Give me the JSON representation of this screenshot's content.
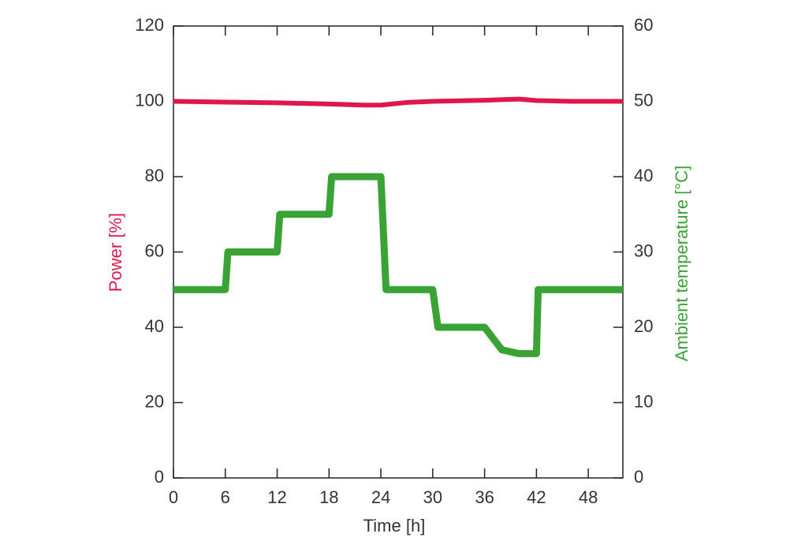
{
  "chart_data": {
    "type": "line",
    "x_label": "Time [h]",
    "y_label": "Power [%]",
    "y2_label": "Ambient temperature [°C]",
    "xlim": [
      0,
      52
    ],
    "xticks": [
      0,
      6,
      12,
      18,
      24,
      30,
      36,
      42,
      48
    ],
    "ylim": [
      0,
      120
    ],
    "yticks": [
      0,
      20,
      40,
      60,
      80,
      100,
      120
    ],
    "y2lim": [
      0,
      60
    ],
    "y2ticks": [
      0,
      10,
      20,
      30,
      40,
      50,
      60
    ],
    "series": [
      {
        "name": "Power [%]",
        "color": "#e0174a",
        "x": [
          0,
          6,
          12,
          18,
          22,
          24,
          27,
          30,
          36,
          40,
          42,
          46,
          52
        ],
        "values": [
          100,
          99.8,
          99.6,
          99.3,
          99,
          99,
          99.7,
          100,
          100.3,
          100.6,
          100.2,
          100,
          100
        ]
      },
      {
        "name": "Ambient temperature [°C]",
        "color": "#3aa335",
        "axis": "y2",
        "x": [
          0,
          6,
          6.3,
          12,
          12.3,
          18,
          18.3,
          24,
          24.6,
          30,
          30.6,
          36,
          38,
          40,
          42,
          42.2,
          52
        ],
        "values": [
          25,
          25,
          30,
          30,
          35,
          35,
          40,
          40,
          25,
          25,
          20,
          20,
          17,
          16.5,
          16.5,
          25,
          25
        ]
      }
    ]
  }
}
